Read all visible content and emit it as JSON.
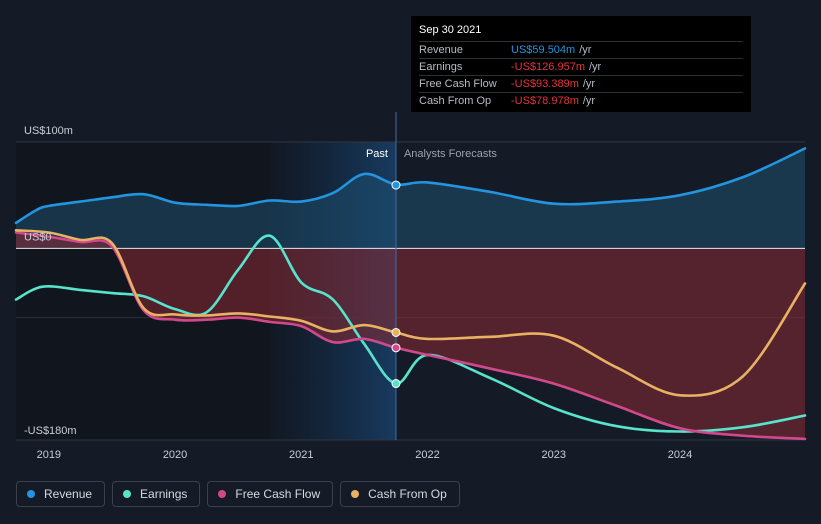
{
  "chart_data": {
    "type": "line",
    "yaxis_labels": [
      "US$100m",
      "US$0",
      "-US$180m"
    ],
    "ylim": [
      -180,
      100
    ],
    "x_ticks": [
      2019,
      2020,
      2021,
      2022,
      2023,
      2024
    ],
    "xlim": [
      2018.74,
      2024.99
    ],
    "divider_x": 2021.75,
    "past_label": "Past",
    "forecast_label": "Analysts Forecasts",
    "series": [
      {
        "name": "Revenue",
        "color": "#2394df",
        "x": [
          2018.74,
          2018.9,
          2019.0,
          2019.25,
          2019.5,
          2019.75,
          2020.0,
          2020.25,
          2020.5,
          2020.75,
          2021.0,
          2021.25,
          2021.5,
          2021.75,
          2022.0,
          2022.5,
          2023.0,
          2023.5,
          2024.0,
          2024.5,
          2024.99
        ],
        "y": [
          24,
          36,
          40,
          44,
          48,
          51,
          43,
          41,
          40,
          45,
          44,
          52,
          70,
          60,
          62,
          53,
          42,
          44,
          50,
          67,
          94
        ],
        "marker_y": 59.504
      },
      {
        "name": "Earnings",
        "color": "#58e3cc",
        "x": [
          2018.74,
          2018.95,
          2019.25,
          2019.5,
          2019.75,
          2020.0,
          2020.25,
          2020.5,
          2020.75,
          2021.0,
          2021.25,
          2021.5,
          2021.75,
          2022.0,
          2022.5,
          2023.0,
          2023.5,
          2024.0,
          2024.5,
          2024.99
        ],
        "y": [
          -48,
          -36,
          -39,
          -42,
          -45,
          -57,
          -60,
          -20,
          12,
          -32,
          -48,
          -90,
          -126.957,
          -100,
          -122,
          -150,
          -167,
          -172,
          -168,
          -157
        ]
      },
      {
        "name": "Free Cash Flow",
        "color": "#d1498c",
        "x": [
          2018.74,
          2019.0,
          2019.25,
          2019.5,
          2019.75,
          2020.0,
          2020.25,
          2020.5,
          2020.75,
          2021.0,
          2021.25,
          2021.5,
          2021.75,
          2022.0,
          2022.5,
          2023.0,
          2023.5,
          2024.0,
          2024.5,
          2024.99
        ],
        "y": [
          15,
          11,
          6,
          2,
          -58,
          -67,
          -67,
          -65,
          -69,
          -73,
          -88,
          -85,
          -93.389,
          -100,
          -113,
          -127,
          -148,
          -169,
          -176,
          -179
        ]
      },
      {
        "name": "Cash From Op",
        "color": "#e9b163",
        "x": [
          2018.74,
          2019.0,
          2019.25,
          2019.5,
          2019.75,
          2020.0,
          2020.25,
          2020.5,
          2020.75,
          2021.0,
          2021.25,
          2021.5,
          2021.75,
          2022.0,
          2022.5,
          2023.0,
          2023.5,
          2024.0,
          2024.5,
          2024.99
        ],
        "y": [
          17,
          15,
          8,
          5,
          -56,
          -62,
          -63,
          -61,
          -64,
          -68,
          -78,
          -72,
          -78.978,
          -85,
          -83,
          -82,
          -112,
          -138,
          -120,
          -33
        ]
      }
    ]
  },
  "tooltip": {
    "date": "Sep 30 2021",
    "rows": [
      {
        "label": "Revenue",
        "value": "US$59.504m",
        "unit": "/yr",
        "color": "#2394df"
      },
      {
        "label": "Earnings",
        "value": "-US$126.957m",
        "unit": "/yr",
        "color": "#e8333b"
      },
      {
        "label": "Free Cash Flow",
        "value": "-US$93.389m",
        "unit": "/yr",
        "color": "#e8333b"
      },
      {
        "label": "Cash From Op",
        "value": "-US$78.978m",
        "unit": "/yr",
        "color": "#e8333b"
      }
    ]
  },
  "legend": [
    {
      "label": "Revenue",
      "color": "#2394df"
    },
    {
      "label": "Earnings",
      "color": "#58e3cc"
    },
    {
      "label": "Free Cash Flow",
      "color": "#d1498c"
    },
    {
      "label": "Cash From Op",
      "color": "#e9b163"
    }
  ]
}
